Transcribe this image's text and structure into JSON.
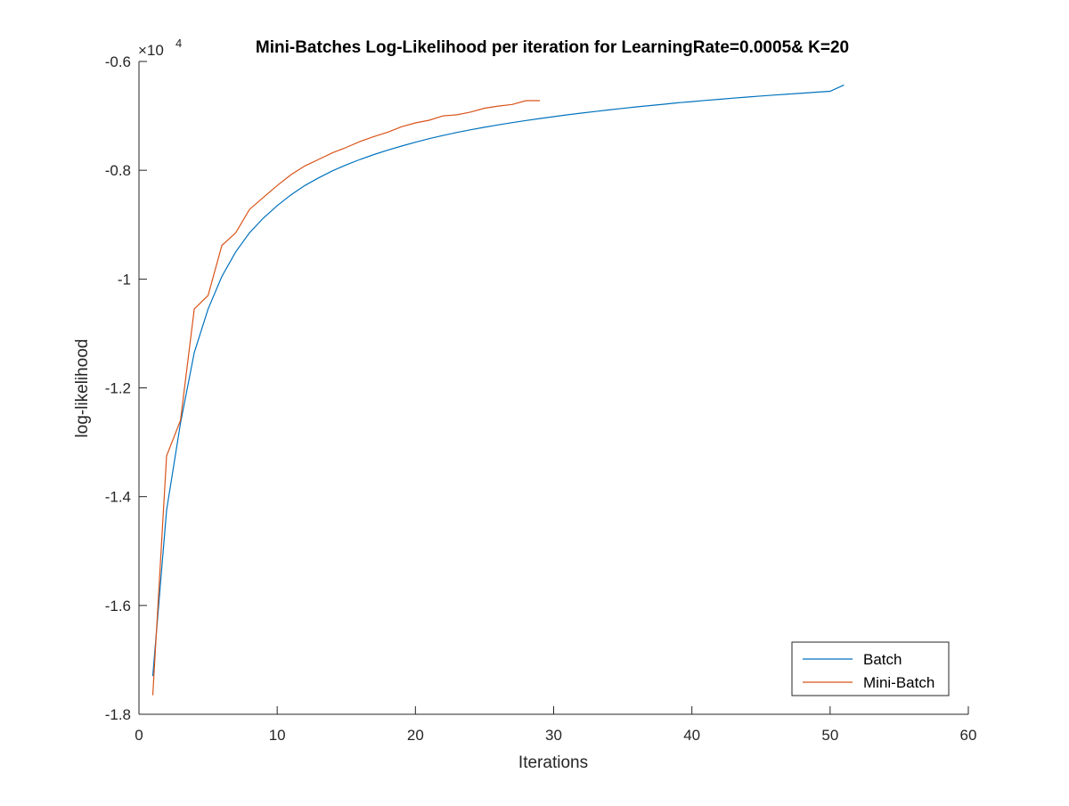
{
  "chart_data": {
    "type": "line",
    "title": "Mini-Batches Log-Likelihood per iteration for LearningRate=0.0005& K=20",
    "xlabel": "Iterations",
    "ylabel": "log-likelihood",
    "xlim": [
      0,
      60
    ],
    "ylim": [
      -18000,
      -6000
    ],
    "x_ticks": [
      0,
      10,
      20,
      30,
      40,
      50,
      60
    ],
    "x_tick_labels": [
      "0",
      "10",
      "20",
      "30",
      "40",
      "50",
      "60"
    ],
    "y_ticks": [
      -18000,
      -16000,
      -14000,
      -12000,
      -10000,
      -8000,
      -6000
    ],
    "y_tick_labels": [
      "-1.8",
      "-1.6",
      "-1.4",
      "-1.2",
      "-1",
      "-0.8",
      "-0.6"
    ],
    "y_exponent": {
      "base": "×10",
      "power": "4"
    },
    "grid": false,
    "legend_position": "bottom-right",
    "series": [
      {
        "name": "Batch",
        "color": "#0072BD",
        "x": [
          1,
          2,
          3,
          4,
          5,
          6,
          7,
          8,
          9,
          10,
          11,
          12,
          13,
          14,
          15,
          16,
          17,
          18,
          19,
          20,
          21,
          22,
          23,
          24,
          25,
          26,
          27,
          28,
          29,
          30,
          31,
          32,
          33,
          34,
          35,
          36,
          37,
          38,
          39,
          40,
          41,
          42,
          43,
          44,
          45,
          46,
          47,
          48,
          49,
          50,
          51
        ],
        "values": [
          -17300,
          -14250,
          -12650,
          -11350,
          -10550,
          -9950,
          -9500,
          -9150,
          -8880,
          -8650,
          -8450,
          -8280,
          -8140,
          -8010,
          -7900,
          -7800,
          -7710,
          -7630,
          -7555,
          -7485,
          -7420,
          -7360,
          -7305,
          -7255,
          -7210,
          -7165,
          -7125,
          -7085,
          -7050,
          -7015,
          -6980,
          -6950,
          -6920,
          -6890,
          -6862,
          -6835,
          -6810,
          -6785,
          -6760,
          -6738,
          -6716,
          -6695,
          -6675,
          -6655,
          -6636,
          -6618,
          -6600,
          -6582,
          -6565,
          -6548,
          -6432
        ]
      },
      {
        "name": "Mini-Batch",
        "color": "#D95319",
        "x": [
          1,
          2,
          3,
          4,
          5,
          6,
          7,
          8,
          9,
          10,
          11,
          12,
          13,
          14,
          15,
          16,
          17,
          18,
          19,
          20,
          21,
          22,
          23,
          24,
          25,
          26,
          27,
          28,
          29
        ],
        "values": [
          -17650,
          -13250,
          -12600,
          -10550,
          -10300,
          -9380,
          -9150,
          -8720,
          -8500,
          -8280,
          -8080,
          -7920,
          -7800,
          -7680,
          -7580,
          -7470,
          -7380,
          -7300,
          -7200,
          -7130,
          -7080,
          -7000,
          -6980,
          -6930,
          -6860,
          -6820,
          -6790,
          -6720,
          -6720
        ]
      }
    ]
  }
}
